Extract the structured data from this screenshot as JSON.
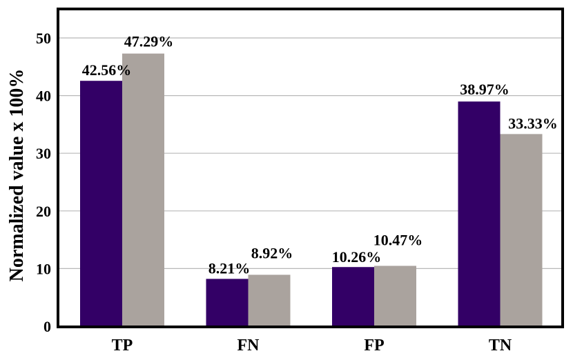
{
  "chart_data": {
    "type": "bar",
    "categories": [
      "TP",
      "FN",
      "FP",
      "TN"
    ],
    "series": [
      {
        "values": [
          42.56,
          8.21,
          10.26,
          38.97
        ],
        "labels": [
          "42.56%",
          "8.21%",
          "10.26%",
          "38.97%"
        ],
        "color": "#330066"
      },
      {
        "values": [
          47.29,
          8.92,
          10.47,
          33.33
        ],
        "labels": [
          "47.29%",
          "8.92%",
          "10.47%",
          "33.33%"
        ],
        "color": "#aaa39e"
      }
    ],
    "title": "",
    "xlabel": "",
    "ylabel": "Normalized value x 100%",
    "ylim": [
      0,
      50
    ],
    "yticks": [
      0,
      10,
      20,
      30,
      40,
      50
    ],
    "grid": true,
    "legend": "none"
  }
}
